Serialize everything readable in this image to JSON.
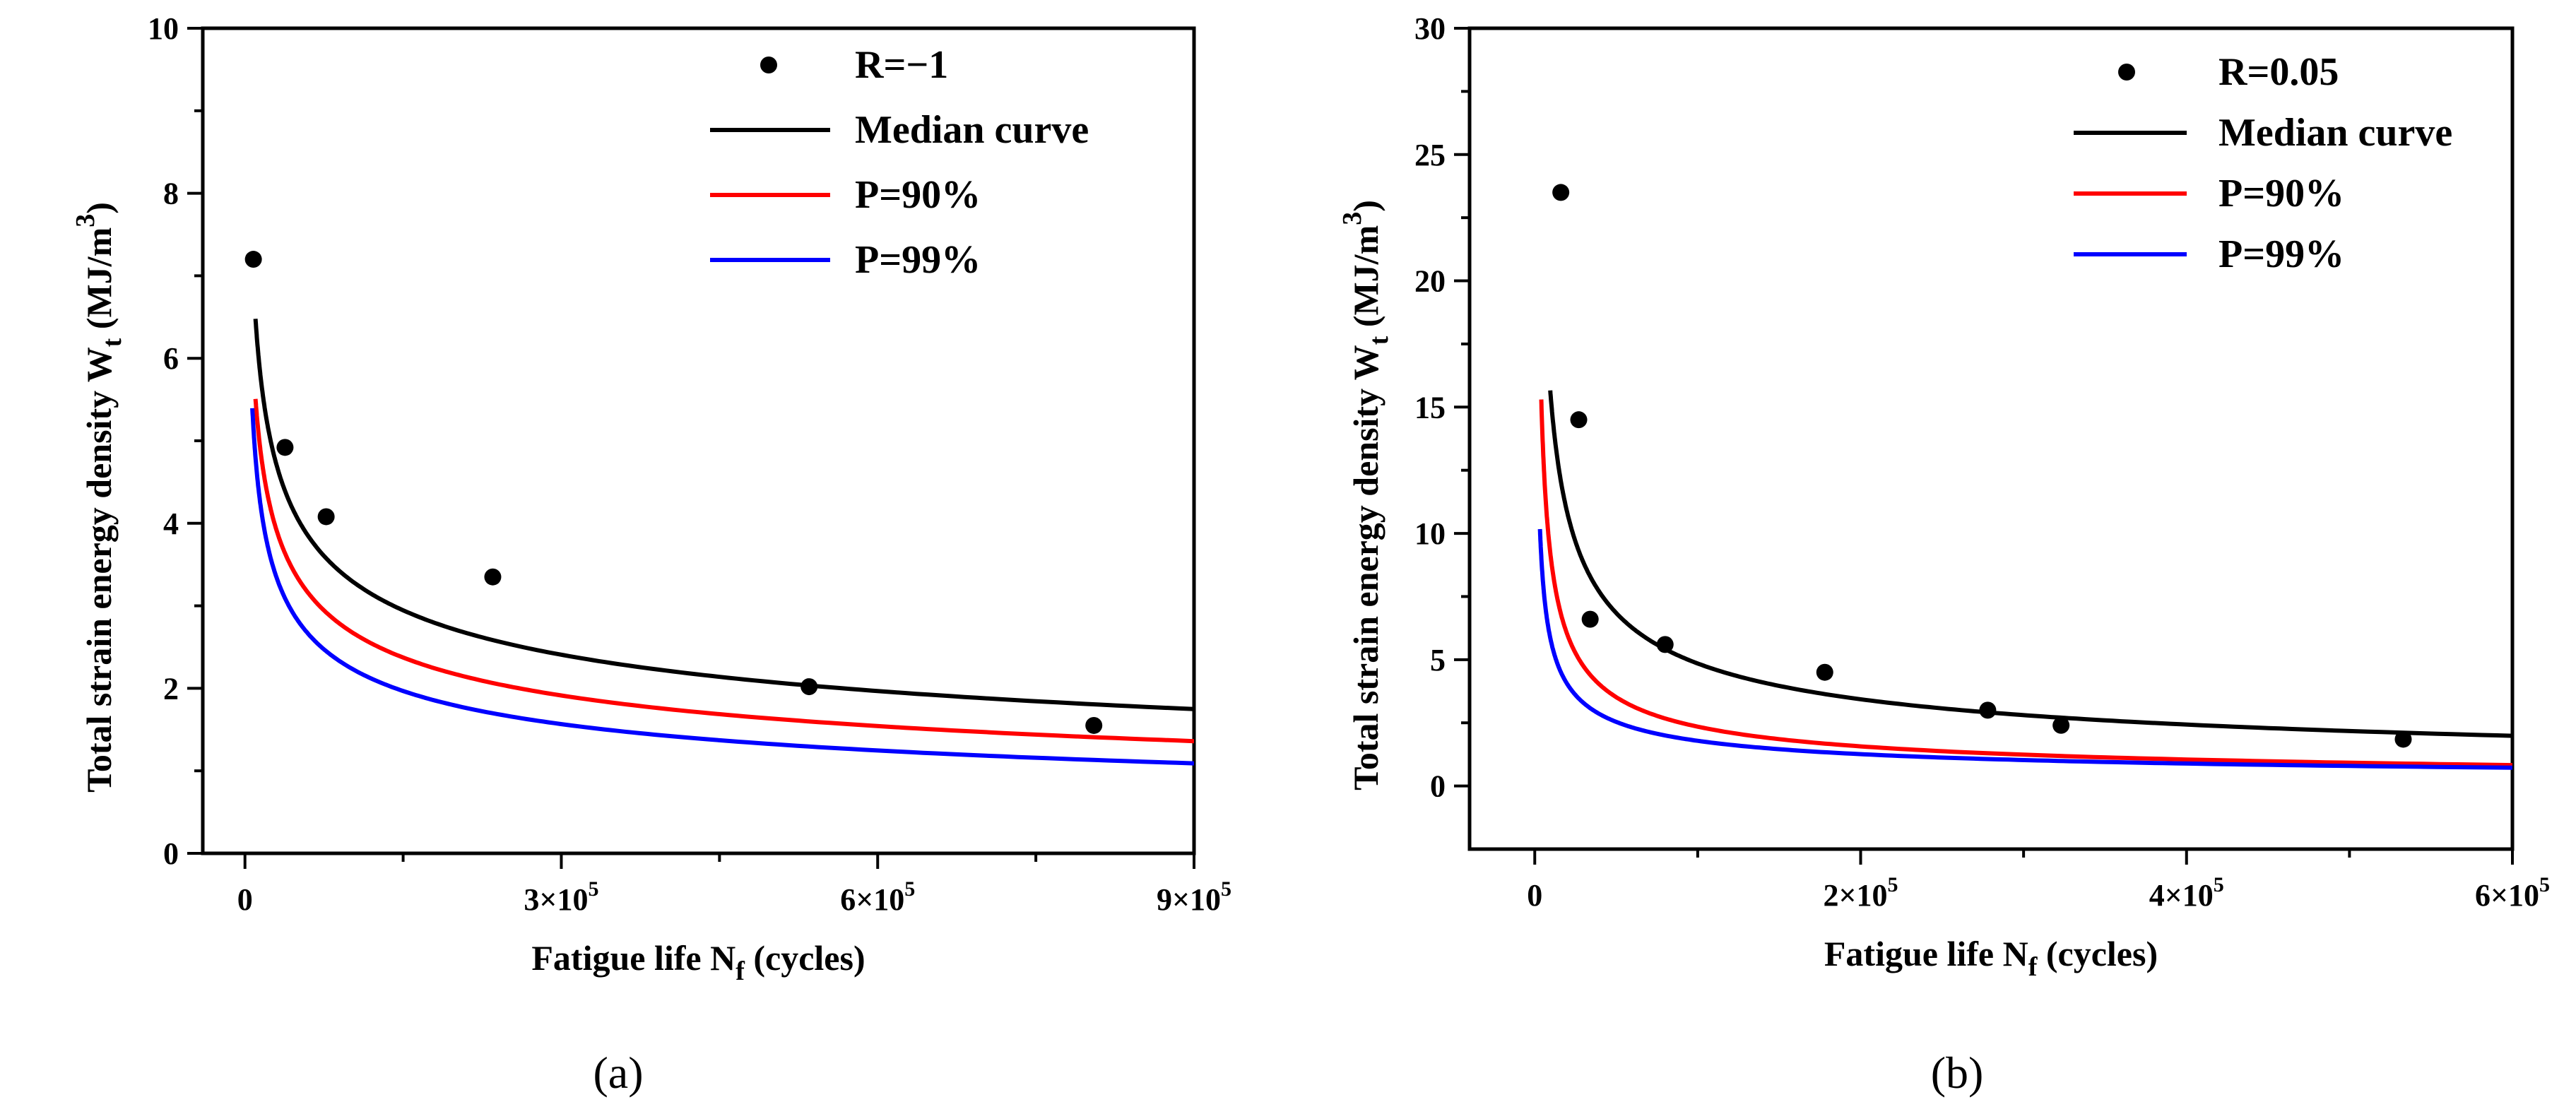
{
  "colors": {
    "median": "#000000",
    "p90": "#ff0000",
    "p99": "#0000ff",
    "points": "#000000"
  },
  "chart_data": [
    {
      "type": "scatter",
      "caption": "(a)",
      "xlabel": "Fatigue life N",
      "xlabel_sub": "f",
      "xlabel_unit": " (cycles)",
      "ylabel": "Total strain energy density  W",
      "ylabel_sub": "t",
      "ylabel_unit": " (MJ/m",
      "ylabel_sup": "3",
      "ylabel_close": ")",
      "xlim": [
        -40000,
        900000
      ],
      "ylim": [
        0,
        10
      ],
      "xticks": [
        0,
        300000,
        600000,
        900000
      ],
      "xtick_labels": [
        "0",
        "3×10",
        "6×10",
        "9×10"
      ],
      "xtick_exps": [
        "",
        "5",
        "5",
        "5"
      ],
      "yticks": [
        0,
        2,
        4,
        6,
        8,
        10
      ],
      "ytick_labels": [
        "0",
        "2",
        "4",
        "6",
        "8",
        "10"
      ],
      "legend": {
        "placement": "top-right",
        "entries": [
          "R=−1",
          "Median curve",
          "P=90%",
          "P=99%"
        ]
      },
      "points": {
        "name": "R=−1",
        "x": [
          8000,
          38000,
          77000,
          235000,
          535000,
          805000
        ],
        "y": [
          7.2,
          4.92,
          4.08,
          3.35,
          2.02,
          1.55
        ]
      },
      "series": [
        {
          "name": "Median curve",
          "model": "power",
          "a": 94.6,
          "b": -0.2911,
          "x_range": [
            10000,
            900000
          ]
        },
        {
          "name": "P=90%",
          "model": "power",
          "a": 96.4,
          "b": -0.3108,
          "x_range": [
            10000,
            900000
          ]
        },
        {
          "name": "P=99%",
          "model": "power",
          "a": 99.4,
          "b": -0.3291,
          "x_range": [
            7000,
            900000
          ]
        }
      ]
    },
    {
      "type": "scatter",
      "caption": "(b)",
      "xlabel": "Fatigue life N",
      "xlabel_sub": "f",
      "xlabel_unit": " (cycles)",
      "ylabel": "Total strain energy density  W",
      "ylabel_sub": "t",
      "ylabel_unit": " (MJ/m",
      "ylabel_sup": "3",
      "ylabel_close": ")",
      "xlim": [
        -40000,
        600000
      ],
      "ylim": [
        -2.5,
        30
      ],
      "xticks": [
        0,
        200000,
        400000,
        600000
      ],
      "xtick_labels": [
        "0",
        "2×10",
        "4×10",
        "6×10"
      ],
      "xtick_exps": [
        "",
        "5",
        "5",
        "5"
      ],
      "yticks": [
        0,
        5,
        10,
        15,
        20,
        25,
        30
      ],
      "ytick_labels": [
        "0",
        "5",
        "10",
        "15",
        "20",
        "25",
        "30"
      ],
      "legend": {
        "placement": "top-right",
        "entries": [
          "R=0.05",
          "Median curve",
          "P=90%",
          "P=99%"
        ]
      },
      "points": {
        "name": "R=0.05",
        "x": [
          16000,
          27000,
          34000,
          80000,
          178000,
          278000,
          323000,
          533000
        ],
        "y": [
          23.5,
          14.5,
          6.6,
          5.6,
          4.5,
          3.0,
          2.4,
          1.85
        ]
      },
      "series": [
        {
          "name": "Median curve",
          "model": "power",
          "a": 1500,
          "b": -0.4981,
          "x_range": [
            9500,
            600000
          ]
        },
        {
          "name": "P=90%",
          "model": "power",
          "a": 1917,
          "b": -0.5824,
          "x_range": [
            4000,
            600000
          ]
        },
        {
          "name": "P=99%",
          "model": "power",
          "a": 600,
          "b": -0.5052,
          "x_range": [
            3200,
            600000
          ]
        }
      ]
    }
  ]
}
